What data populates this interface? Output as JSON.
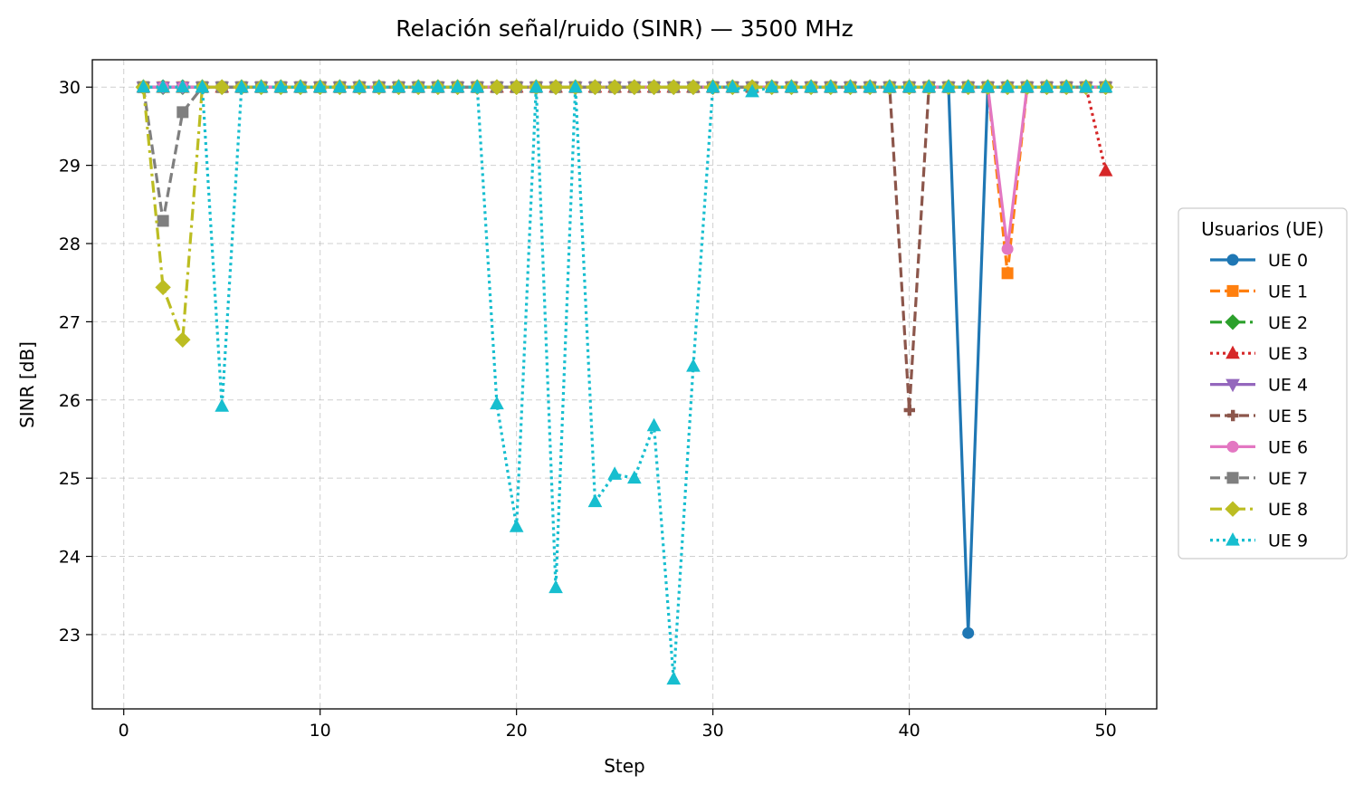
{
  "chart_data": {
    "type": "line",
    "title": "Relación señal/ruido (SINR) — 3500 MHz",
    "xlabel": "Step",
    "ylabel": "SINR [dB]",
    "xlim": [
      -1.6,
      52.6
    ],
    "ylim": [
      22.05,
      30.35
    ],
    "xticks": [
      0,
      10,
      20,
      30,
      40,
      50
    ],
    "yticks": [
      23,
      24,
      25,
      26,
      27,
      28,
      29,
      30
    ],
    "grid": true,
    "legend": {
      "title": "Usuarios (UE)",
      "placement": "center-right outside"
    },
    "x": [
      1,
      2,
      3,
      4,
      5,
      6,
      7,
      8,
      9,
      10,
      11,
      12,
      13,
      14,
      15,
      16,
      17,
      18,
      19,
      20,
      21,
      22,
      23,
      24,
      25,
      26,
      27,
      28,
      29,
      30,
      31,
      32,
      33,
      34,
      35,
      36,
      37,
      38,
      39,
      40,
      41,
      42,
      43,
      44,
      45,
      46,
      47,
      48,
      49,
      50
    ],
    "series": [
      {
        "name": "UE 0",
        "color": "#1f77b4",
        "linestyle": "solid",
        "marker": "circle",
        "values": [
          30,
          30,
          30,
          30,
          30,
          30,
          30,
          30,
          30,
          30,
          30,
          30,
          30,
          30,
          30,
          30,
          30,
          30,
          30,
          30,
          30,
          30,
          30,
          30,
          30,
          30,
          30,
          30,
          30,
          30,
          30,
          30,
          30,
          30,
          30,
          30,
          30,
          30,
          30,
          30,
          30,
          30,
          23.02,
          30,
          30,
          30,
          30,
          30,
          30,
          30
        ]
      },
      {
        "name": "UE 1",
        "color": "#ff7f0e",
        "linestyle": "dashed",
        "marker": "square",
        "values": [
          30,
          30,
          30,
          30,
          30,
          30,
          30,
          30,
          30,
          30,
          30,
          30,
          30,
          30,
          30,
          30,
          30,
          30,
          30,
          30,
          30,
          30,
          30,
          30,
          30,
          30,
          30,
          30,
          30,
          30,
          30,
          30,
          30,
          30,
          30,
          30,
          30,
          30,
          30,
          30,
          30,
          30,
          30,
          30,
          27.62,
          30,
          30,
          30,
          30,
          30
        ]
      },
      {
        "name": "UE 2",
        "color": "#2ca02c",
        "linestyle": "dashdot",
        "marker": "diamond",
        "values": [
          30,
          30,
          30,
          30,
          30,
          30,
          30,
          30,
          30,
          30,
          30,
          30,
          30,
          30,
          30,
          30,
          30,
          30,
          30,
          30,
          30,
          30,
          30,
          30,
          30,
          30,
          30,
          30,
          30,
          30,
          30,
          30,
          30,
          30,
          30,
          30,
          30,
          30,
          30,
          30,
          30,
          30,
          30,
          30,
          30,
          30,
          30,
          30,
          30,
          30
        ]
      },
      {
        "name": "UE 3",
        "color": "#d62728",
        "linestyle": "dotted",
        "marker": "triangle-up",
        "values": [
          30,
          30,
          30,
          30,
          30,
          30,
          30,
          30,
          30,
          30,
          30,
          30,
          30,
          30,
          30,
          30,
          30,
          30,
          30,
          30,
          30,
          30,
          30,
          30,
          30,
          30,
          30,
          30,
          30,
          30,
          30,
          30,
          30,
          30,
          30,
          30,
          30,
          30,
          30,
          30,
          30,
          30,
          30,
          30,
          30,
          30,
          30,
          30,
          30,
          28.93
        ]
      },
      {
        "name": "UE 4",
        "color": "#9467bd",
        "linestyle": "solid",
        "marker": "triangle-down",
        "values": [
          30,
          30,
          30,
          30,
          30,
          30,
          30,
          30,
          30,
          30,
          30,
          30,
          30,
          30,
          30,
          30,
          30,
          30,
          30,
          30,
          30,
          30,
          30,
          30,
          30,
          30,
          30,
          30,
          30,
          30,
          30,
          30,
          30,
          30,
          30,
          30,
          30,
          30,
          30,
          30,
          30,
          30,
          30,
          30,
          30,
          30,
          30,
          30,
          30,
          30
        ]
      },
      {
        "name": "UE 5",
        "color": "#8c564b",
        "linestyle": "dashed",
        "marker": "plus",
        "values": [
          30,
          30,
          30,
          30,
          30,
          30,
          30,
          30,
          30,
          30,
          30,
          30,
          30,
          30,
          30,
          30,
          30,
          30,
          30,
          30,
          30,
          30,
          30,
          30,
          30,
          30,
          30,
          30,
          30,
          30,
          30,
          30,
          30,
          30,
          30,
          30,
          30,
          30,
          30,
          25.87,
          30,
          30,
          30,
          30,
          30,
          30,
          30,
          30,
          30,
          30
        ]
      },
      {
        "name": "UE 6",
        "color": "#e377c2",
        "linestyle": "solid",
        "marker": "circle",
        "values": [
          30,
          30,
          30,
          30,
          30,
          30,
          30,
          30,
          30,
          30,
          30,
          30,
          30,
          30,
          30,
          30,
          30,
          30,
          30,
          30,
          30,
          30,
          30,
          30,
          30,
          30,
          30,
          30,
          30,
          30,
          30,
          30,
          30,
          30,
          30,
          30,
          30,
          30,
          30,
          30,
          30,
          30,
          30,
          30,
          27.93,
          30,
          30,
          30,
          30,
          30
        ]
      },
      {
        "name": "UE 7",
        "color": "#7f7f7f",
        "linestyle": "dashed",
        "marker": "square",
        "values": [
          30,
          28.29,
          29.68,
          30,
          30,
          30,
          30,
          30,
          30,
          30,
          30,
          30,
          30,
          30,
          30,
          30,
          30,
          30,
          30,
          30,
          30,
          30,
          30,
          30,
          30,
          30,
          30,
          30,
          30,
          30,
          30,
          30,
          30,
          30,
          30,
          30,
          30,
          30,
          30,
          30,
          30,
          30,
          30,
          30,
          30,
          30,
          30,
          30,
          30,
          30
        ]
      },
      {
        "name": "UE 8",
        "color": "#bcbd22",
        "linestyle": "dashdot",
        "marker": "diamond",
        "values": [
          30,
          27.44,
          26.77,
          30,
          30,
          30,
          30,
          30,
          30,
          30,
          30,
          30,
          30,
          30,
          30,
          30,
          30,
          30,
          30,
          30,
          30,
          30,
          30,
          30,
          30,
          30,
          30,
          30,
          30,
          30,
          30,
          30,
          30,
          30,
          30,
          30,
          30,
          30,
          30,
          30,
          30,
          30,
          30,
          30,
          30,
          30,
          30,
          30,
          30,
          30
        ]
      },
      {
        "name": "UE 9",
        "color": "#17becf",
        "linestyle": "dotted",
        "marker": "triangle-up",
        "values": [
          30,
          30,
          30,
          30,
          25.92,
          30,
          30,
          30,
          30,
          30,
          30,
          30,
          30,
          30,
          30,
          30,
          30,
          30,
          25.95,
          24.38,
          30,
          23.6,
          30,
          24.7,
          25.05,
          25.0,
          25.67,
          22.43,
          26.43,
          30,
          30,
          29.94,
          30,
          30,
          30,
          30,
          30,
          30,
          30,
          30,
          30,
          30,
          30,
          30,
          30,
          30,
          30,
          30,
          30,
          30
        ]
      }
    ]
  }
}
